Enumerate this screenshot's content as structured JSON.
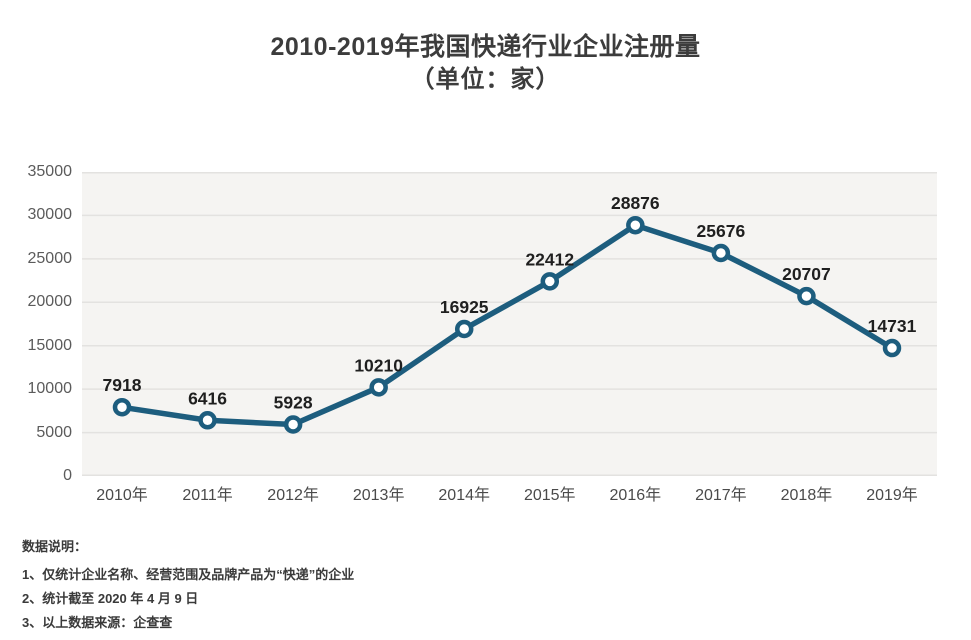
{
  "title": {
    "line1": "2010-2019年我国快递行业企业注册量",
    "line2": "（单位：家）"
  },
  "chart_data": {
    "type": "line",
    "title": "2010-2019年我国快递行业企业注册量（单位：家）",
    "categories": [
      "2010年",
      "2011年",
      "2012年",
      "2013年",
      "2014年",
      "2015年",
      "2016年",
      "2017年",
      "2018年",
      "2019年"
    ],
    "values": [
      7918,
      6416,
      5928,
      10210,
      16925,
      22412,
      28876,
      25676,
      20707,
      14731
    ],
    "series_name": "快递行业企业注册量",
    "xlabel": "",
    "ylabel": "",
    "ylim": [
      0,
      35000
    ],
    "yticks": [
      0,
      5000,
      10000,
      15000,
      20000,
      25000,
      30000,
      35000
    ],
    "grid": "horizontal",
    "legend": "none",
    "data_labels": true,
    "colors": {
      "line": "#1d5d7e",
      "marker_fill": "#ffffff",
      "plot_background": "#f5f4f2",
      "gridline": "#e3e2e0",
      "data_label": "#1f1f1f",
      "axis_label": "#4a4a4a"
    }
  },
  "notes": {
    "heading": "数据说明：",
    "items": [
      "1、仅统计企业名称、经营范围及品牌产品为“快递”的企业",
      "2、统计截至 2020 年 4 月 9 日",
      "3、以上数据来源：企查查"
    ]
  }
}
